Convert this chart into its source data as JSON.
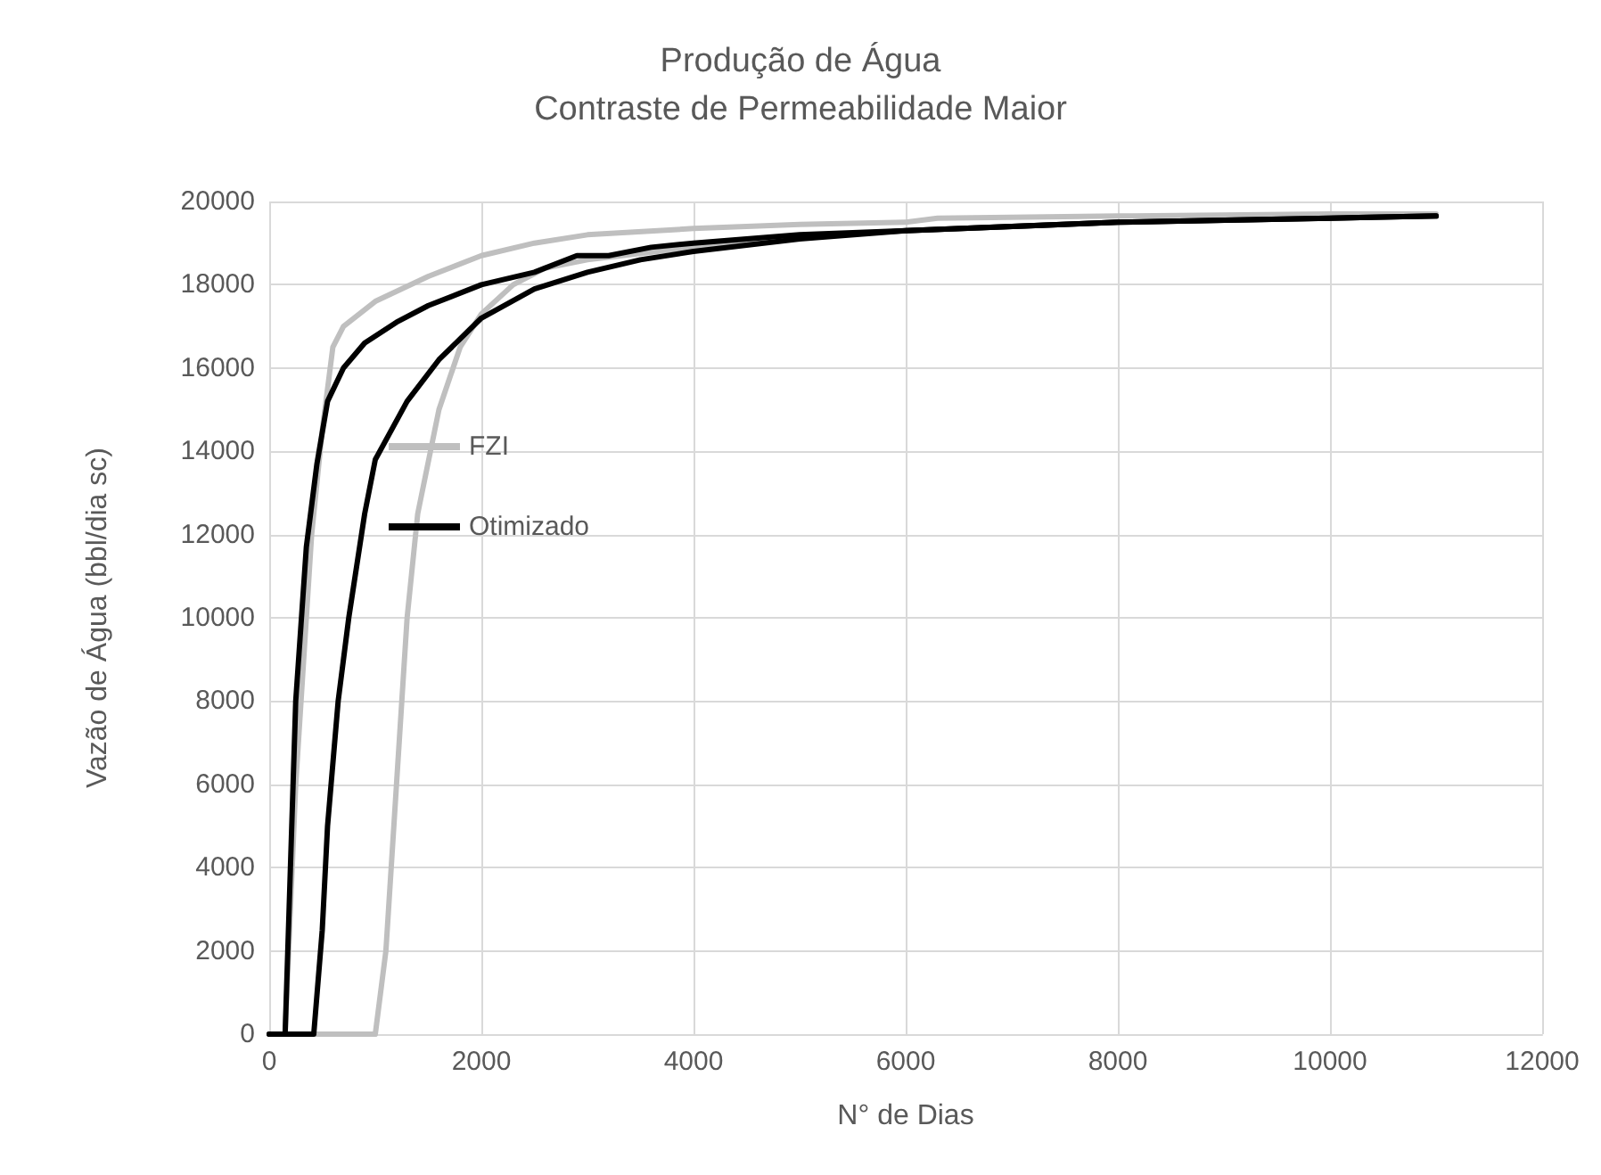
{
  "chart_data": {
    "type": "line",
    "title": "Produção de Água",
    "subtitle": "Contraste de Permeabilidade Maior",
    "xlabel": "N° de Dias",
    "ylabel": "Vazão de Água (bbl/dia sc)",
    "xlim": [
      0,
      12000
    ],
    "xticks": [
      0,
      2000,
      4000,
      6000,
      8000,
      10000,
      12000
    ],
    "ylim": [
      0,
      20000
    ],
    "yticks": [
      0,
      2000,
      4000,
      6000,
      8000,
      10000,
      12000,
      14000,
      16000,
      18000,
      20000
    ],
    "grid": true,
    "legend": "left",
    "marker": "none",
    "line_style": "solid",
    "series": [
      {
        "name": "FZI",
        "color": "#bfbfbf",
        "x": [
          0,
          150,
          250,
          400,
          500,
          600,
          700,
          1000,
          1500,
          2000,
          2500,
          3000,
          4000,
          5000,
          6000,
          6300,
          8000,
          10000,
          11000
        ],
        "values": [
          0,
          0,
          6000,
          12000,
          14500,
          16500,
          17000,
          17600,
          18200,
          18700,
          19000,
          19200,
          19350,
          19450,
          19500,
          19600,
          19650,
          19700,
          19700
        ]
      },
      {
        "color": "#bfbfbf",
        "x": [
          0,
          1000,
          1100,
          1200,
          1300,
          1400,
          1600,
          1800,
          2000,
          2300,
          2600,
          3000,
          4000,
          5000,
          6000,
          8000,
          11000
        ],
        "values": [
          0,
          0,
          2000,
          6000,
          10000,
          12500,
          15000,
          16500,
          17300,
          18000,
          18400,
          18600,
          18900,
          19150,
          19300,
          19500,
          19650
        ]
      },
      {
        "name": "Otimizado",
        "color": "#000000",
        "x": [
          0,
          150,
          200,
          250,
          350,
          450,
          550,
          700,
          900,
          1200,
          1500,
          2000,
          2500,
          2900,
          3200,
          3600,
          4000,
          5000,
          6000,
          8000,
          10000,
          11000
        ],
        "values": [
          0,
          0,
          4000,
          8000,
          11700,
          13700,
          15200,
          16000,
          16600,
          17100,
          17500,
          18000,
          18300,
          18700,
          18700,
          18900,
          19000,
          19200,
          19300,
          19500,
          19600,
          19650
        ]
      },
      {
        "color": "#000000",
        "x": [
          0,
          420,
          500,
          550,
          650,
          750,
          900,
          1000,
          1300,
          1600,
          2000,
          2500,
          3000,
          3500,
          4000,
          5000,
          6000,
          8000,
          10000,
          11000
        ],
        "values": [
          0,
          0,
          2500,
          5000,
          8000,
          10000,
          12500,
          13800,
          15200,
          16200,
          17200,
          17900,
          18300,
          18600,
          18800,
          19100,
          19300,
          19500,
          19600,
          19650
        ]
      }
    ]
  }
}
